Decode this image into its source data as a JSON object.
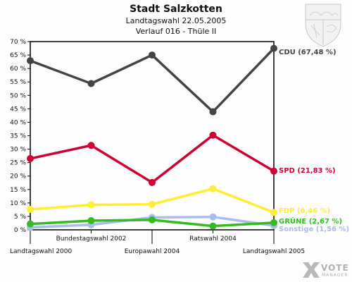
{
  "header": {
    "title": "Stadt Salzkotten",
    "subtitle1": "Landtagswahl 22.05.2005",
    "subtitle2": "Verlauf 016 - Thüle II"
  },
  "emblem": {
    "icon": "nrw-coat-of-arms-icon"
  },
  "branding": {
    "word1": "VOTE",
    "word2": "MANAGER",
    "icon": "x-mark-icon"
  },
  "chart_data": {
    "type": "line",
    "categories": [
      "Landtagswahl 2000",
      "Bundestagswahl 2002",
      "Europawahl 2004",
      "Ratswahl 2004",
      "Landtagswahl 2005"
    ],
    "y_ticks": [
      "0 %",
      "5 %",
      "10 %",
      "15 %",
      "20 %",
      "25 %",
      "30 %",
      "35 %",
      "40 %",
      "45 %",
      "50 %",
      "55 %",
      "60 %",
      "65 %",
      "70 %"
    ],
    "ylim": [
      0,
      70
    ],
    "grid": false,
    "series": [
      {
        "name": "CDU",
        "values": [
          62.9,
          54.4,
          65.0,
          43.9,
          67.48
        ],
        "label": "CDU (67,48 %)",
        "color": "#444444"
      },
      {
        "name": "SPD",
        "values": [
          26.5,
          31.4,
          17.6,
          35.2,
          21.83
        ],
        "label": "SPD (21,83 %)",
        "color": "#cc0033"
      },
      {
        "name": "FDP",
        "values": [
          7.6,
          9.3,
          9.5,
          15.3,
          6.46
        ],
        "label": "FDP (6,46 %)",
        "color": "#ffee33"
      },
      {
        "name": "GRÜNE",
        "values": [
          2.2,
          3.4,
          3.7,
          1.4,
          2.67
        ],
        "label": "GRÜNE (2,67 %)",
        "color": "#33bb22"
      },
      {
        "name": "Sonstige",
        "values": [
          0.9,
          1.9,
          4.6,
          4.8,
          1.56
        ],
        "label": "Sonstige (1,56 %)",
        "color": "#aabbee"
      }
    ]
  }
}
